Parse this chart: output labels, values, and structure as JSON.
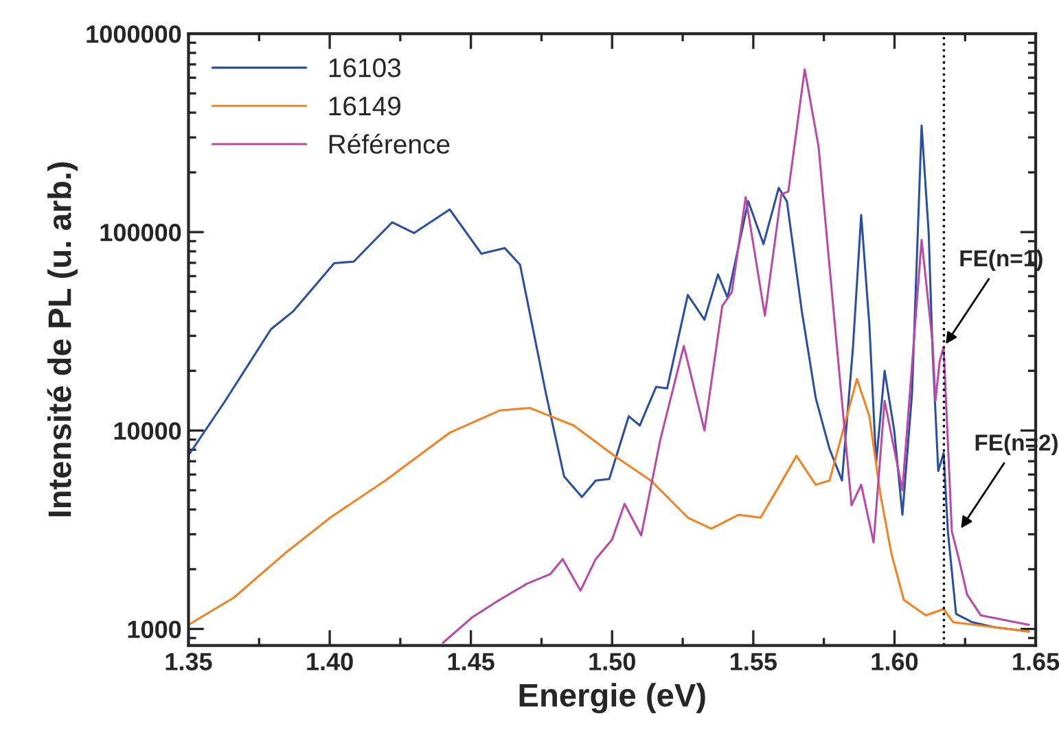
{
  "chart_data": {
    "type": "line",
    "xlabel": "Energie (eV)",
    "ylabel": "Intensité de PL (u. arb.)",
    "log": "y",
    "xlim": [
      1.35,
      1.65
    ],
    "ylim": [
      825,
      1000000
    ],
    "xticks": [
      {
        "value": 1.35,
        "label": "1.35"
      },
      {
        "value": 1.4,
        "label": "1.40"
      },
      {
        "value": 1.45,
        "label": "1.45"
      },
      {
        "value": 1.5,
        "label": "1.50"
      },
      {
        "value": 1.55,
        "label": "1.55"
      },
      {
        "value": 1.6,
        "label": "1.60"
      },
      {
        "value": 1.65,
        "label": "1.65"
      }
    ],
    "yticks": [
      1000,
      10000,
      100000,
      1000000
    ],
    "legend": "top left",
    "grid": false,
    "line_style": "solid",
    "marker": "none",
    "ref_lines": [
      {
        "axis": "x",
        "value": 1.6175,
        "line_style": "dotted",
        "color": "#000000"
      }
    ],
    "annotations": [
      {
        "text": "FE(n=1)",
        "x": 1.6174,
        "y": 26300
      },
      {
        "text": "FE(n=2)",
        "x": 1.6228,
        "y": 3100
      }
    ],
    "series": [
      {
        "name": "16103",
        "color": "#2a4fa0",
        "x": [
          1.35,
          1.3627,
          1.3792,
          1.387,
          1.4016,
          1.4085,
          1.4221,
          1.4299,
          1.4425,
          1.4537,
          1.462,
          1.4674,
          1.4766,
          1.483,
          1.4893,
          1.4942,
          1.499,
          1.5059,
          1.5098,
          1.5156,
          1.5195,
          1.5268,
          1.5327,
          1.5375,
          1.5409,
          1.5482,
          1.5536,
          1.559,
          1.5619,
          1.5672,
          1.5721,
          1.577,
          1.5814,
          1.5853,
          1.5882,
          1.5911,
          1.5935,
          1.5965,
          1.5999,
          1.6028,
          1.6062,
          1.6096,
          1.6121,
          1.6135,
          1.6155,
          1.6174,
          1.6189,
          1.6218,
          1.6276,
          1.6354,
          1.6476
        ],
        "values": [
          7500,
          13900,
          32400,
          39800,
          69700,
          71000,
          112000,
          98900,
          130000,
          77800,
          83000,
          68500,
          15300,
          5870,
          4620,
          5600,
          5700,
          11800,
          10600,
          16600,
          16300,
          48200,
          36200,
          61200,
          46700,
          143000,
          87100,
          167000,
          143000,
          39800,
          14600,
          8070,
          5600,
          26300,
          122000,
          34000,
          6880,
          20000,
          10000,
          3760,
          15300,
          344000,
          99000,
          24700,
          6250,
          7700,
          3100,
          1190,
          1080,
          1020,
          970
        ]
      },
      {
        "name": "16149",
        "color": "#f58220",
        "x": [
          1.35,
          1.3661,
          1.3841,
          1.4002,
          1.4197,
          1.4426,
          1.4601,
          1.4708,
          1.4864,
          1.5015,
          1.5137,
          1.5268,
          1.5351,
          1.5448,
          1.5526,
          1.5594,
          1.5653,
          1.5721,
          1.577,
          1.5867,
          1.5911,
          1.595,
          1.5989,
          1.6033,
          1.6111,
          1.6174,
          1.6208,
          1.6354,
          1.6476
        ],
        "values": [
          1050,
          1440,
          2400,
          3640,
          5600,
          9770,
          12600,
          13000,
          10600,
          7340,
          5600,
          3640,
          3200,
          3760,
          3640,
          5330,
          7450,
          5330,
          5600,
          18200,
          11800,
          4770,
          2400,
          1400,
          1170,
          1260,
          1080,
          1020,
          970
        ]
      },
      {
        "name": "Référence",
        "color": "#b94aa8",
        "x": [
          1.4401,
          1.4503,
          1.4601,
          1.4698,
          1.4781,
          1.4825,
          1.4888,
          1.4942,
          1.5,
          1.501,
          1.5044,
          1.5103,
          1.5171,
          1.5254,
          1.5327,
          1.539,
          1.5424,
          1.5473,
          1.5541,
          1.5599,
          1.5624,
          1.5682,
          1.5731,
          1.5789,
          1.5848,
          1.5882,
          1.5926,
          1.5965,
          1.6028,
          1.6096,
          1.6135,
          1.6145,
          1.616,
          1.6174,
          1.6203,
          1.6228,
          1.6257,
          1.6306,
          1.6476
        ],
        "values": [
          851,
          1140,
          1400,
          1690,
          1890,
          2250,
          1560,
          2250,
          2820,
          3100,
          4270,
          2960,
          9030,
          26700,
          10000,
          42400,
          49800,
          150000,
          37900,
          155000,
          160000,
          661000,
          270000,
          34000,
          4200,
          5330,
          2730,
          14100,
          5000,
          91300,
          27600,
          14100,
          22400,
          26300,
          3100,
          2250,
          1490,
          1170,
          1050
        ]
      }
    ]
  }
}
